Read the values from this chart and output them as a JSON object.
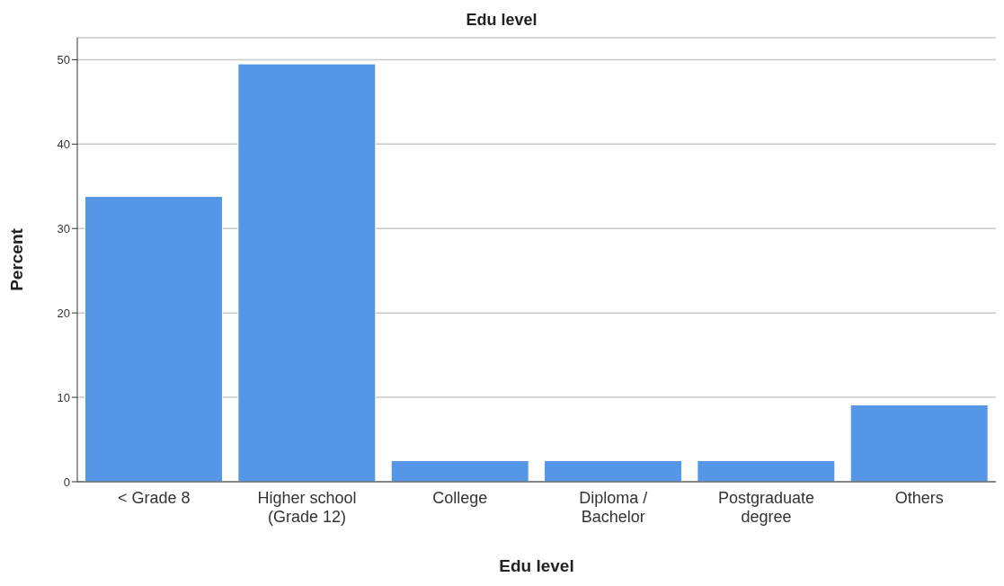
{
  "chart_data": {
    "type": "bar",
    "title": "Edu level",
    "xlabel": "Edu level",
    "ylabel": "Percent",
    "categories": [
      "< Grade 8",
      "Higher school\n(Grade 12)",
      "College",
      "Diploma /\nBachelor",
      "Postgraduate\ndegree",
      "Others"
    ],
    "values": [
      33.8,
      49.5,
      2.5,
      2.5,
      2.5,
      9.1
    ],
    "color": "#5597e6",
    "ylim": [
      0,
      52.6
    ],
    "yticks": [
      0,
      10,
      20,
      30,
      40,
      50
    ],
    "grid": "y"
  }
}
